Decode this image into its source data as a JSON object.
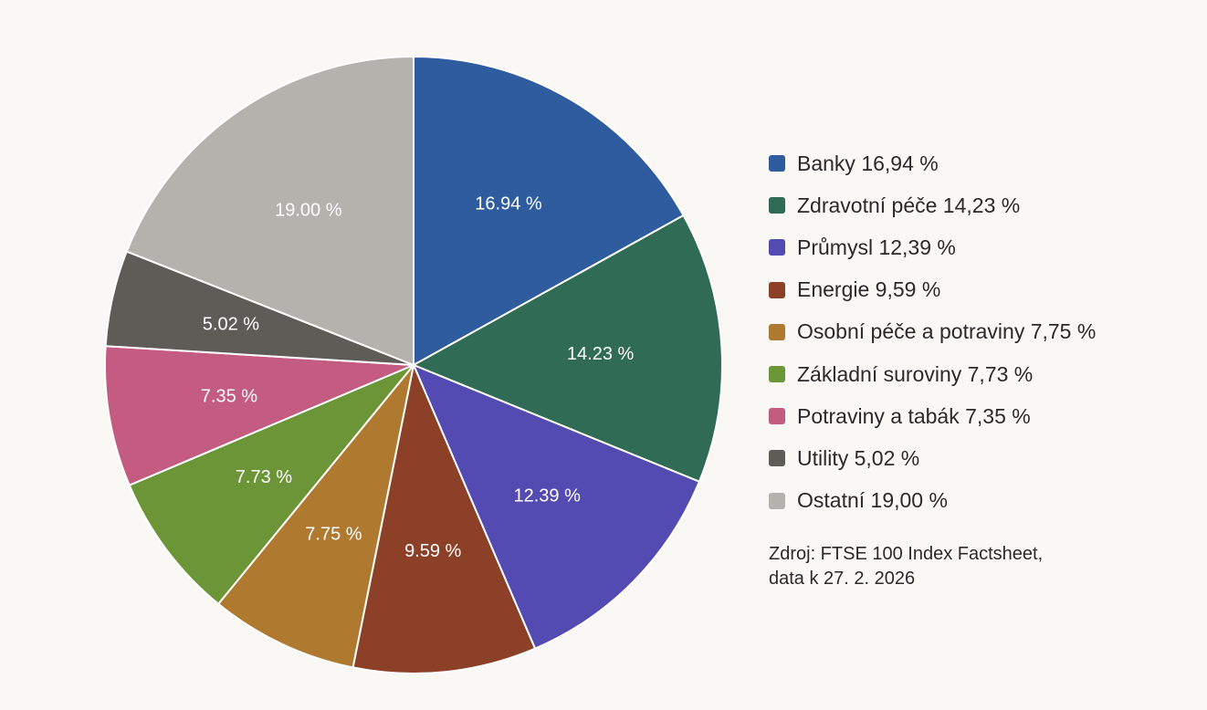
{
  "chart_data": {
    "type": "pie",
    "slices": [
      {
        "label": "16.94 %",
        "legend": "Banky 16,94 %",
        "value": 16.94,
        "color": "#2e5c9f"
      },
      {
        "label": "14.23 %",
        "legend": "Zdravotní péče 14,23 %",
        "value": 14.23,
        "color": "#2f6b55"
      },
      {
        "label": "12.39 %",
        "legend": "Průmysl 12,39 %",
        "value": 12.39,
        "color": "#534bb1"
      },
      {
        "label": "9.59 %",
        "legend": "Energie 9,59 %",
        "value": 9.59,
        "color": "#8b4027"
      },
      {
        "label": "7.75 %",
        "legend": "Osobní péče a potraviny 7,75 %",
        "value": 7.75,
        "color": "#b07930"
      },
      {
        "label": "7.73 %",
        "legend": "Základní suroviny 7,73 %",
        "value": 7.73,
        "color": "#6c9538"
      },
      {
        "label": "7.35 %",
        "legend": "Potraviny a tabák 7,35 %",
        "value": 7.35,
        "color": "#c45b80"
      },
      {
        "label": "5.02 %",
        "legend": "Utility 5,02 %",
        "value": 5.02,
        "color": "#5e5c57"
      },
      {
        "label": "19.00 %",
        "legend": "Ostatní 19,00 %",
        "value": 19.0,
        "color": "#b4b2ac"
      }
    ],
    "legend_position": "right"
  },
  "source": {
    "line1": "Zdroj: FTSE 100 Index Factsheet,",
    "line2": "data k 27. 2. 2026"
  }
}
